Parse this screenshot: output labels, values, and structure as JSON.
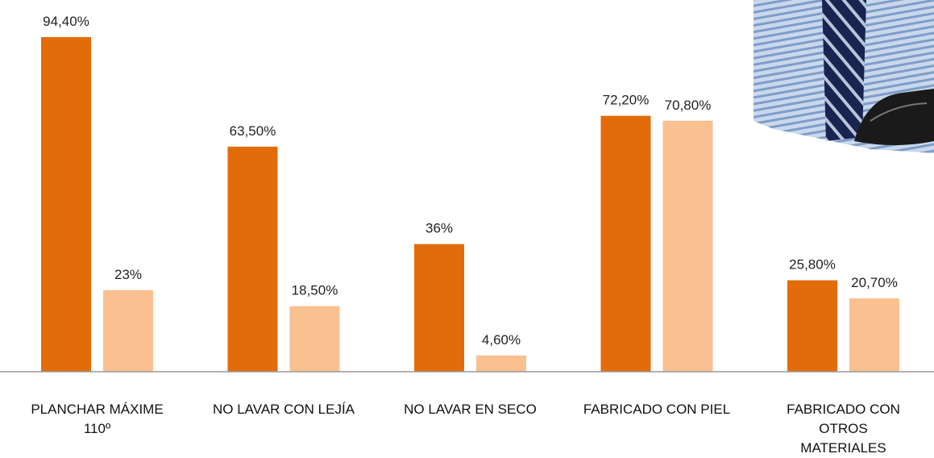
{
  "chart_data": {
    "type": "bar",
    "categories": [
      "PLANCHAR MÁXIME 110º",
      "NO LAVAR CON LEJÍA",
      "NO LAVAR EN SECO",
      "FABRICADO CON PIEL",
      "FABRICADO CON OTROS MATERIALES"
    ],
    "series": [
      {
        "color": "#e36c0a",
        "values": [
          94.4,
          63.5,
          36,
          72.2,
          25.8
        ],
        "value_labels": [
          "94,40%",
          "63,50%",
          "36%",
          "72,20%",
          "25,80%"
        ]
      },
      {
        "color": "#fac090",
        "values": [
          23,
          18.5,
          4.6,
          70.8,
          20.7
        ],
        "value_labels": [
          "23%",
          "18,50%",
          "4,60%",
          "70,80%",
          "20,70%"
        ]
      }
    ]
  }
}
